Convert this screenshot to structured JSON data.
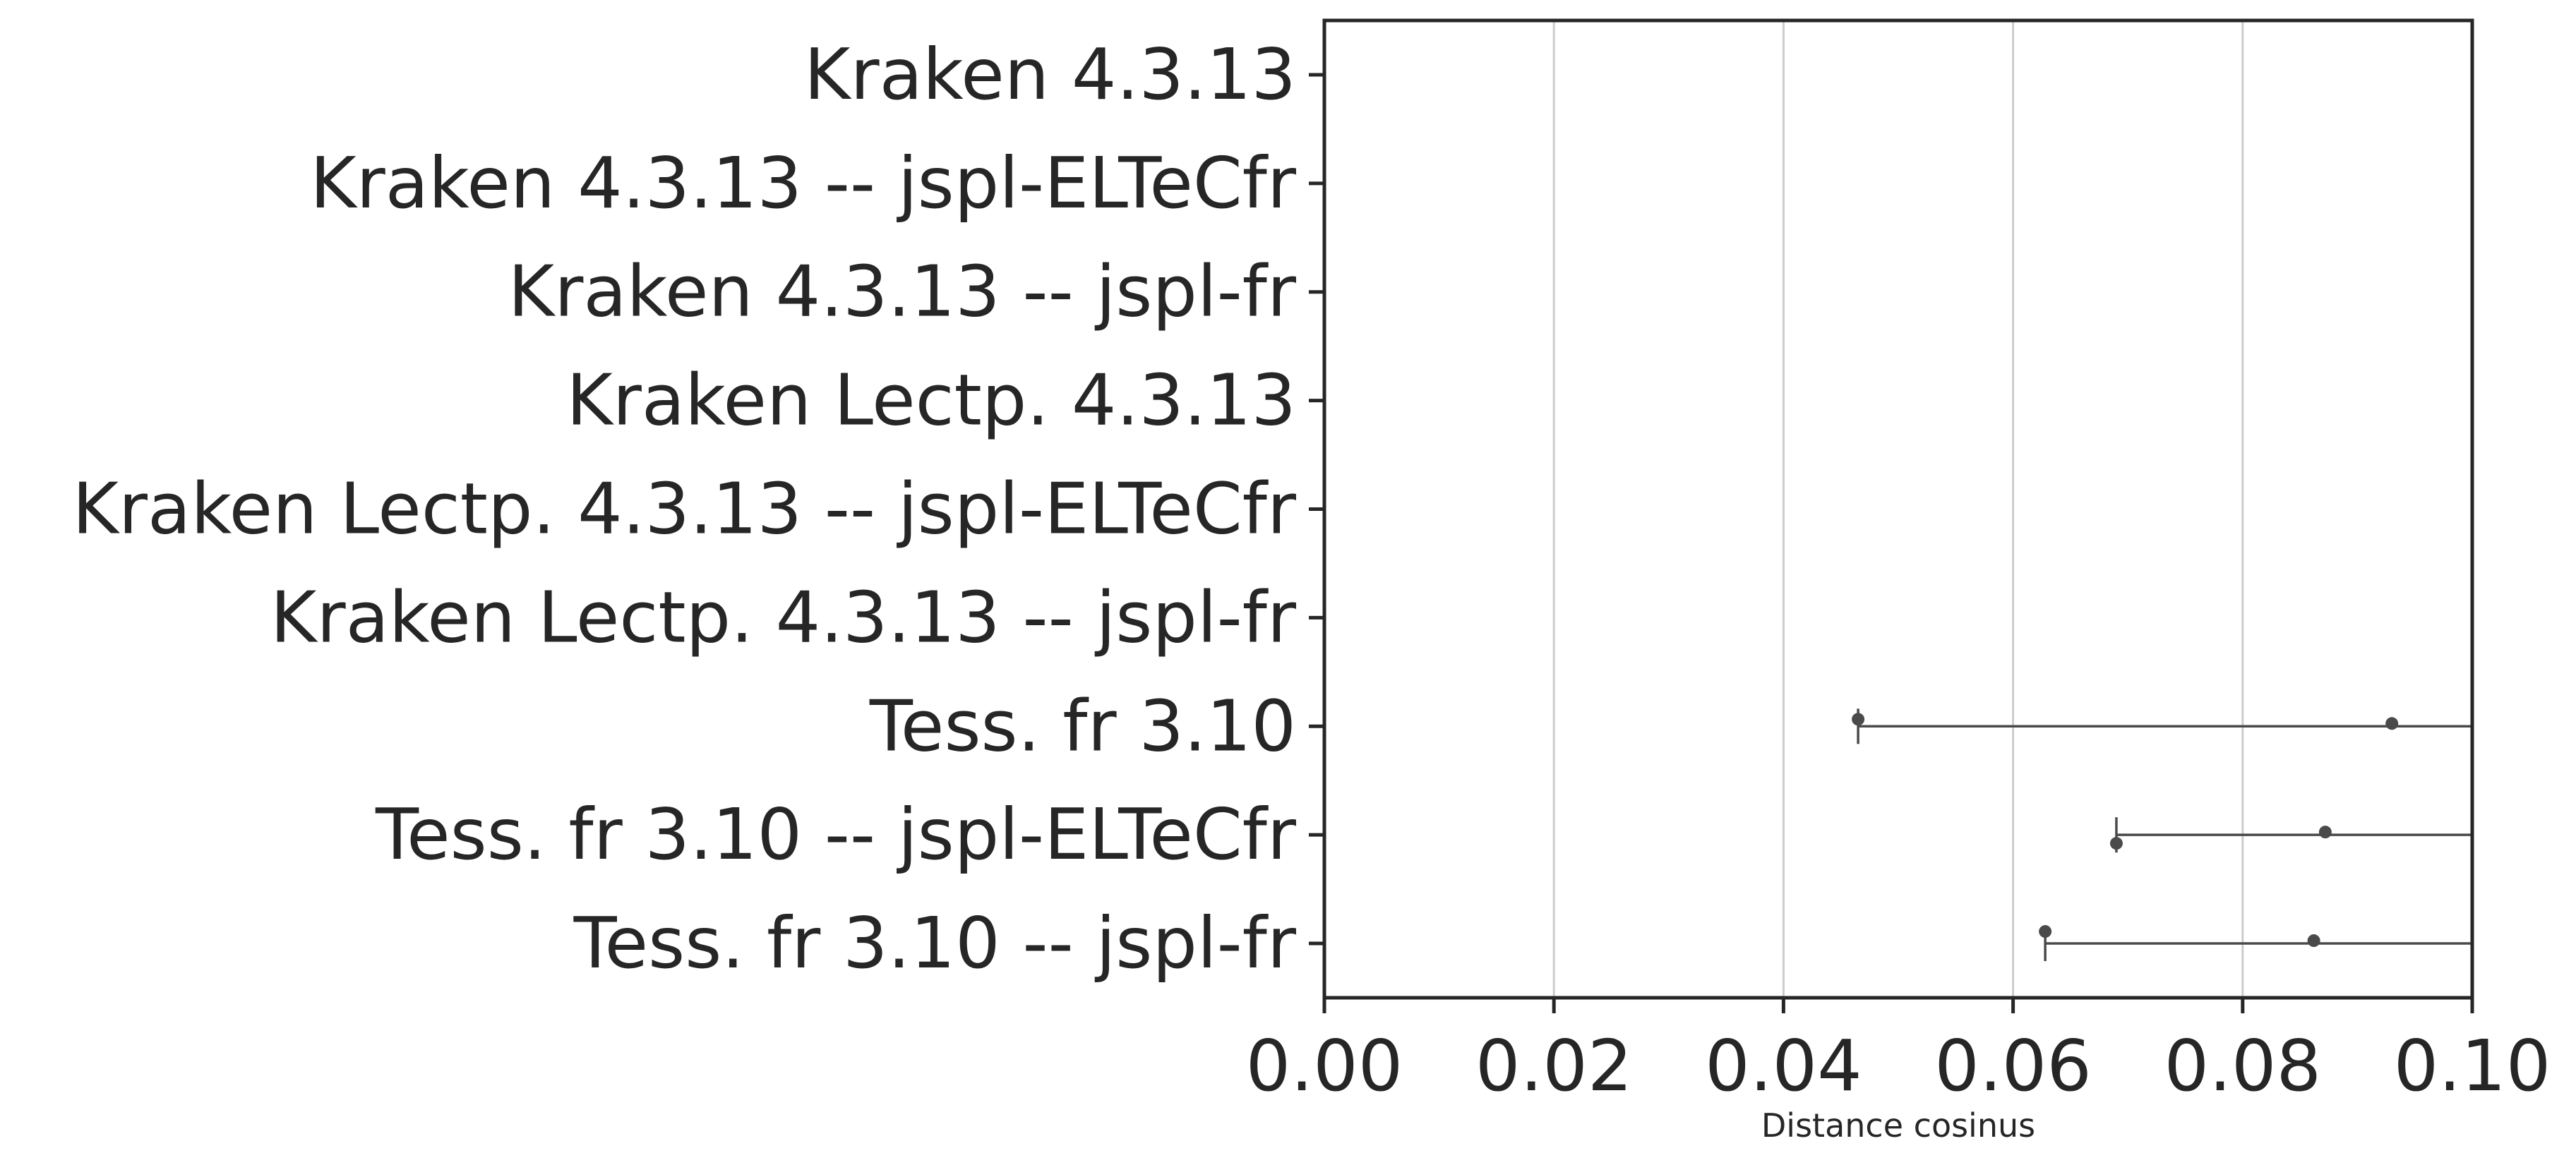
{
  "chart_data": {
    "type": "box",
    "orientation": "horizontal",
    "title": "",
    "xlabel": "Distance cosinus",
    "ylabel": "",
    "xlim": [
      0.0,
      0.1
    ],
    "xticks": [
      "0.00",
      "0.02",
      "0.04",
      "0.06",
      "0.08",
      "0.10"
    ],
    "xtick_values": [
      0.0,
      0.02,
      0.04,
      0.06,
      0.08,
      0.1
    ],
    "grid": "vertical",
    "categories": [
      "Kraken 4.3.13",
      "Kraken 4.3.13 -- jspl-ELTeCfr",
      "Kraken 4.3.13 -- jspl-fr",
      "Kraken Lectp. 4.3.13",
      "Kraken Lectp. 4.3.13 -- jspl-ELTeCfr",
      "Kraken Lectp. 4.3.13 -- jspl-fr",
      "Tess. fr 3.10",
      "Tess. fr 3.10 -- jspl-ELTeCfr",
      "Tess. fr 3.10 -- jspl-fr"
    ],
    "whiskers": [
      null,
      null,
      null,
      null,
      null,
      null,
      {
        "low": 0.0465,
        "cap_low": 0.0465,
        "extends_past": 0.1,
        "outliers": [
          0.0465,
          0.093
        ]
      },
      {
        "low": 0.069,
        "cap_low": 0.069,
        "extends_past": 0.1,
        "outliers": [
          0.069,
          0.0872
        ]
      },
      {
        "low": 0.0628,
        "cap_low": 0.0628,
        "extends_past": 0.1,
        "outliers": [
          0.0628,
          0.0862
        ]
      }
    ],
    "colors": {
      "line": "#4a4a4a",
      "grid": "#cccccc",
      "axis": "#262626",
      "text": "#262626"
    }
  }
}
